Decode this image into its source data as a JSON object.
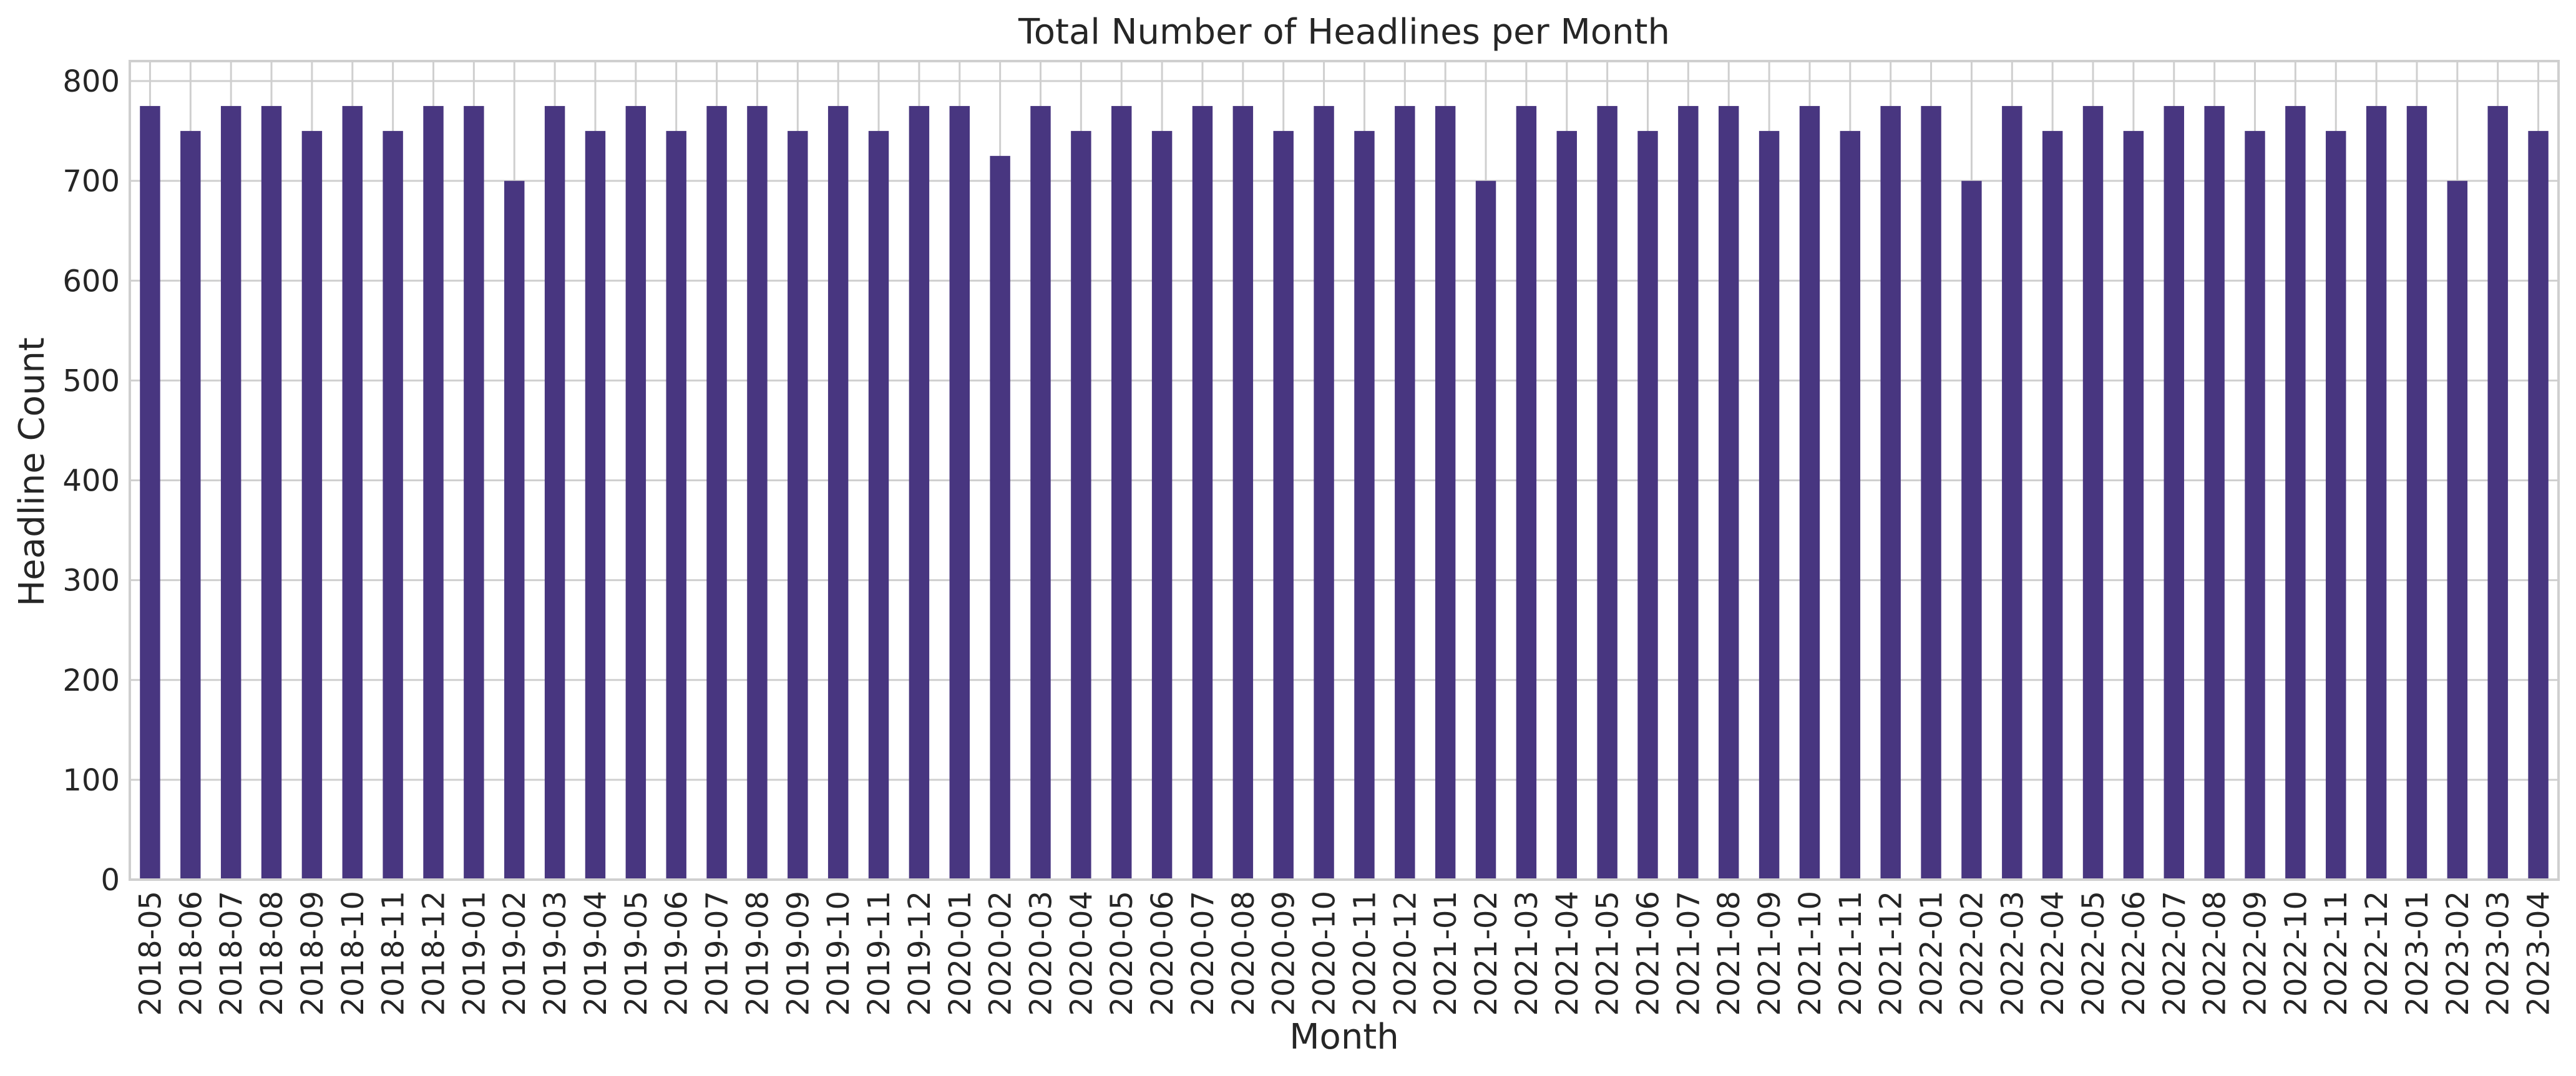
{
  "chart_data": {
    "type": "bar",
    "title": "Total Number of Headlines per Month",
    "xlabel": "Month",
    "ylabel": "Headline Count",
    "ylim": [
      0,
      820
    ],
    "yticks": [
      0,
      100,
      200,
      300,
      400,
      500,
      600,
      700,
      800
    ],
    "grid": true,
    "legend": "none",
    "colors": {
      "bar": "#483680",
      "grid": "#cfcfcf",
      "frame": "#cfcfcf"
    },
    "categories": [
      "2018-05",
      "2018-06",
      "2018-07",
      "2018-08",
      "2018-09",
      "2018-10",
      "2018-11",
      "2018-12",
      "2019-01",
      "2019-02",
      "2019-03",
      "2019-04",
      "2019-05",
      "2019-06",
      "2019-07",
      "2019-08",
      "2019-09",
      "2019-10",
      "2019-11",
      "2019-12",
      "2020-01",
      "2020-02",
      "2020-03",
      "2020-04",
      "2020-05",
      "2020-06",
      "2020-07",
      "2020-08",
      "2020-09",
      "2020-10",
      "2020-11",
      "2020-12",
      "2021-01",
      "2021-02",
      "2021-03",
      "2021-04",
      "2021-05",
      "2021-06",
      "2021-07",
      "2021-08",
      "2021-09",
      "2021-10",
      "2021-11",
      "2021-12",
      "2022-01",
      "2022-02",
      "2022-03",
      "2022-04",
      "2022-05",
      "2022-06",
      "2022-07",
      "2022-08",
      "2022-09",
      "2022-10",
      "2022-11",
      "2022-12",
      "2023-01",
      "2023-02",
      "2023-03",
      "2023-04"
    ],
    "values": [
      775,
      750,
      775,
      775,
      750,
      775,
      750,
      775,
      775,
      700,
      775,
      750,
      775,
      750,
      775,
      775,
      750,
      775,
      750,
      775,
      775,
      725,
      775,
      750,
      775,
      750,
      775,
      775,
      750,
      775,
      750,
      775,
      775,
      700,
      775,
      750,
      775,
      750,
      775,
      775,
      750,
      775,
      750,
      775,
      775,
      700,
      775,
      750,
      775,
      750,
      775,
      775,
      750,
      775,
      750,
      775,
      775,
      700,
      775,
      750
    ]
  }
}
